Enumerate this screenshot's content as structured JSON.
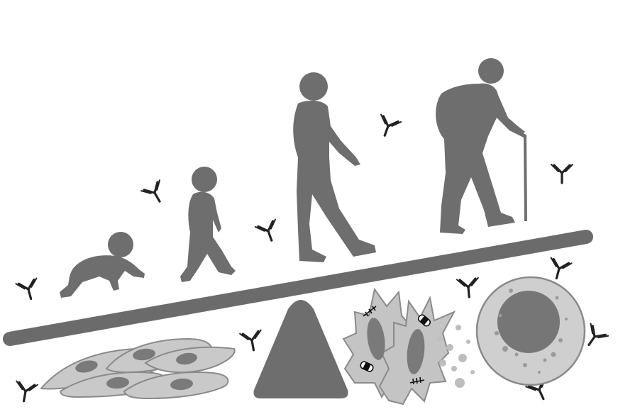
{
  "colors": {
    "silhouette": "#6e6e6e",
    "beam": "#6b6b6b",
    "fulcrum": "#6e6e6e",
    "cell_fill": "#c9c9c9",
    "cell_stroke": "#8a8a8a",
    "nucleus": "#7a7a7a",
    "senescent_fill": "#c4c4c4",
    "antibody": "#222222",
    "background": "#ffffff"
  },
  "icons": {
    "figures": [
      "infant-crawling-icon",
      "toddler-walking-icon",
      "adult-walking-icon",
      "elderly-with-cane-icon"
    ],
    "cells": [
      "fibroblast-cell-icon",
      "senescent-cell-icon",
      "apoptotic-cell-icon"
    ],
    "marker": "antibody-icon",
    "lever": "seesaw-icon"
  }
}
